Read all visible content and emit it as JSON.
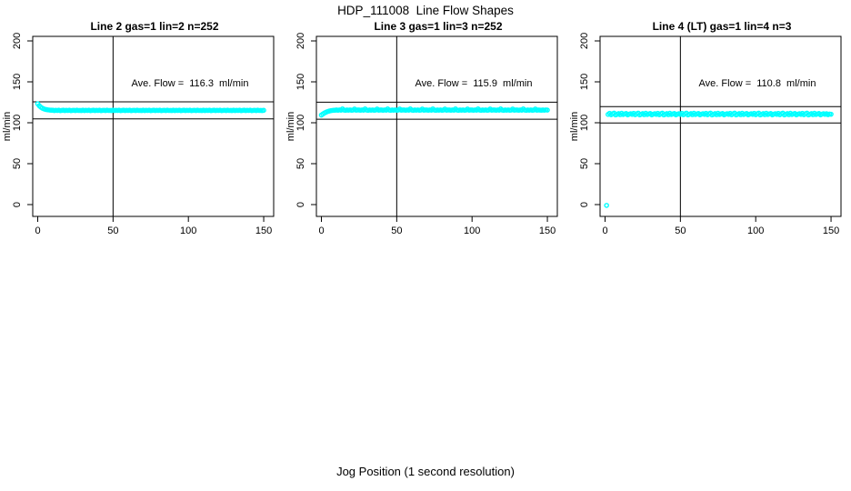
{
  "figure": {
    "title": "HDP_111008  Line Flow Shapes",
    "xlabel": "Jog Position (1 second resolution)",
    "background_color": "#ffffff",
    "axis_color": "#000000",
    "point_color": "#00ffff"
  },
  "chart_data": [
    {
      "type": "scatter",
      "title": "Line 2 gas=1 lin=2 n=252",
      "annotation": "Ave. Flow =  116.3  ml/min",
      "ave_flow_ml_min": 116.3,
      "n": 252,
      "ylabel": "ml/min",
      "xticks": [
        0,
        50,
        100,
        150
      ],
      "yticks": [
        0,
        50,
        100,
        150,
        200
      ],
      "xlim": [
        -3,
        155
      ],
      "ylim": [
        -15,
        206
      ],
      "grid": false,
      "ref_vline_x": 50,
      "ref_hlines_y": [
        125.6,
        104.7
      ],
      "x_start": 0,
      "x_step": 1,
      "y": [
        123.2,
        120.8,
        119.1,
        117.9,
        117.0,
        116.4,
        116.0,
        115.7,
        115.5,
        115.3,
        115.3,
        114.9,
        115.2,
        115.0,
        115.4,
        114.8,
        115.1,
        115.3,
        114.9,
        115.2,
        115.0,
        115.3,
        114.8,
        115.1,
        115.2,
        114.9,
        115.3,
        115.0,
        115.1,
        114.9,
        115.3,
        114.9,
        115.2,
        115.0,
        115.4,
        114.8,
        115.1,
        115.3,
        114.9,
        115.2,
        115.0,
        115.3,
        114.8,
        115.1,
        115.2,
        114.9,
        115.3,
        115.0,
        115.1,
        114.9,
        115.3,
        114.9,
        115.2,
        115.0,
        115.4,
        114.8,
        115.1,
        115.3,
        114.9,
        115.2,
        115.0,
        115.3,
        114.8,
        115.1,
        115.2,
        114.9,
        115.3,
        115.0,
        115.1,
        114.9,
        115.3,
        114.9,
        115.2,
        115.0,
        115.4,
        114.8,
        115.1,
        115.3,
        114.9,
        115.2,
        115.0,
        115.3,
        114.8,
        115.1,
        115.2,
        114.9,
        115.3,
        115.0,
        115.1,
        114.9,
        115.3,
        114.9,
        115.2,
        115.0,
        115.4,
        114.8,
        115.1,
        115.3,
        114.9,
        115.2,
        115.0,
        115.3,
        114.8,
        115.1,
        115.2,
        114.9,
        115.3,
        115.0,
        115.1,
        114.9,
        115.3,
        114.9,
        115.2,
        115.0,
        115.4,
        114.8,
        115.1,
        115.3,
        114.9,
        115.2,
        115.0,
        115.3,
        114.8,
        115.1,
        115.2,
        114.9,
        115.3,
        115.0,
        115.1,
        114.9,
        115.3,
        114.9,
        115.2,
        115.0,
        115.4,
        114.8,
        115.1,
        115.3,
        114.9,
        115.2,
        115.0,
        115.3,
        114.8,
        115.1,
        115.2,
        114.9,
        115.3,
        115.0,
        115.1,
        114.9,
        115.2
      ]
    },
    {
      "type": "scatter",
      "title": "Line 3 gas=1 lin=3 n=252",
      "annotation": "Ave. Flow =  115.9  ml/min",
      "ave_flow_ml_min": 115.9,
      "n": 252,
      "ylabel": "ml/min",
      "xticks": [
        0,
        50,
        100,
        150
      ],
      "yticks": [
        0,
        50,
        100,
        150,
        200
      ],
      "xlim": [
        -3,
        155
      ],
      "ylim": [
        -15,
        206
      ],
      "grid": false,
      "ref_vline_x": 50,
      "ref_hlines_y": [
        125.2,
        104.3
      ],
      "x_start": 0,
      "x_step": 1,
      "y": [
        109.4,
        110.7,
        111.9,
        112.8,
        113.6,
        114.2,
        114.7,
        115.0,
        115.2,
        115.3,
        115.6,
        115.3,
        115.7,
        115.4,
        116.9,
        115.5,
        115.2,
        115.6,
        115.4,
        115.7,
        115.3,
        115.5,
        116.8,
        115.4,
        115.6,
        115.6,
        115.3,
        115.7,
        115.4,
        116.9,
        115.5,
        115.2,
        115.6,
        115.4,
        115.7,
        115.3,
        115.5,
        116.8,
        115.4,
        115.6,
        115.6,
        115.3,
        115.7,
        115.4,
        116.9,
        115.5,
        115.2,
        115.6,
        115.4,
        115.7,
        115.3,
        115.5,
        116.8,
        115.4,
        115.6,
        115.6,
        115.3,
        115.7,
        115.4,
        116.9,
        115.5,
        115.2,
        115.6,
        115.4,
        115.7,
        115.3,
        115.5,
        116.8,
        115.4,
        115.6,
        115.6,
        115.3,
        115.7,
        115.4,
        116.9,
        115.5,
        115.2,
        115.6,
        115.4,
        115.7,
        115.3,
        115.5,
        116.8,
        115.4,
        115.6,
        115.6,
        115.3,
        115.7,
        115.4,
        116.9,
        115.5,
        115.2,
        115.6,
        115.4,
        115.7,
        115.3,
        115.5,
        116.8,
        115.4,
        115.6,
        115.6,
        115.3,
        115.7,
        115.4,
        116.9,
        115.5,
        115.2,
        115.6,
        115.4,
        115.7,
        115.3,
        115.5,
        116.8,
        115.4,
        115.6,
        115.6,
        115.3,
        115.7,
        115.4,
        116.9,
        115.5,
        115.2,
        115.6,
        115.4,
        115.7,
        115.3,
        115.5,
        116.8,
        115.4,
        115.6,
        115.6,
        115.3,
        115.7,
        115.4,
        116.9,
        115.5,
        115.2,
        115.6,
        115.4,
        115.7,
        115.3,
        115.5,
        116.8,
        115.4,
        115.6,
        115.5,
        115.3,
        115.6,
        115.4,
        115.7,
        115.5
      ]
    },
    {
      "type": "scatter",
      "title": "Line 4 (LT) gas=1 lin=4 n=3",
      "annotation": "Ave. Flow =  110.8  ml/min",
      "ave_flow_ml_min": 110.8,
      "n": 3,
      "ylabel": "ml/min",
      "xticks": [
        0,
        50,
        100,
        150
      ],
      "yticks": [
        0,
        50,
        100,
        150,
        200
      ],
      "xlim": [
        -3,
        155
      ],
      "ylim": [
        -15,
        206
      ],
      "grid": false,
      "ref_vline_x": 50,
      "ref_hlines_y": [
        119.7,
        99.7
      ],
      "outlier_point": {
        "x": 1,
        "y": -1
      },
      "x_start": 0,
      "x_step": 1,
      "y": [
        null,
        -1.0,
        110.2,
        111.5,
        109.8,
        110.9,
        111.8,
        109.6,
        110.4,
        111.2,
        109.9,
        111.6,
        110.1,
        110.8,
        111.3,
        109.7,
        110.5,
        111.0,
        110.2,
        111.5,
        109.8,
        110.9,
        111.8,
        109.6,
        110.4,
        111.2,
        109.9,
        111.6,
        110.1,
        110.8,
        111.3,
        109.7,
        110.5,
        111.0,
        110.2,
        111.5,
        109.8,
        110.9,
        111.8,
        109.6,
        110.4,
        111.2,
        109.9,
        111.6,
        110.1,
        110.8,
        111.3,
        109.7,
        110.5,
        111.0,
        110.2,
        111.5,
        109.8,
        110.9,
        111.8,
        109.6,
        110.4,
        111.2,
        109.9,
        111.6,
        110.1,
        110.8,
        111.3,
        109.7,
        110.5,
        111.0,
        110.2,
        111.5,
        109.8,
        110.9,
        111.8,
        109.6,
        110.4,
        111.2,
        109.9,
        111.6,
        110.1,
        110.8,
        111.3,
        109.7,
        110.5,
        111.0,
        110.2,
        111.5,
        109.8,
        110.9,
        111.8,
        109.6,
        110.4,
        111.2,
        109.9,
        111.6,
        110.1,
        110.8,
        111.3,
        109.7,
        110.5,
        111.0,
        110.2,
        111.5,
        109.8,
        110.9,
        111.8,
        109.6,
        110.4,
        111.2,
        109.9,
        111.6,
        110.1,
        110.8,
        111.3,
        109.7,
        110.5,
        111.0,
        110.2,
        111.5,
        109.8,
        110.9,
        111.8,
        109.6,
        110.4,
        111.2,
        109.9,
        111.6,
        110.1,
        110.8,
        111.3,
        109.7,
        110.5,
        111.0,
        110.2,
        111.5,
        109.8,
        110.9,
        111.8,
        109.6,
        110.4,
        111.2,
        109.9,
        111.6,
        110.1,
        110.8,
        111.3,
        109.7,
        110.5,
        111.0,
        110.3,
        111.1,
        109.9,
        110.7,
        110.4
      ]
    }
  ]
}
